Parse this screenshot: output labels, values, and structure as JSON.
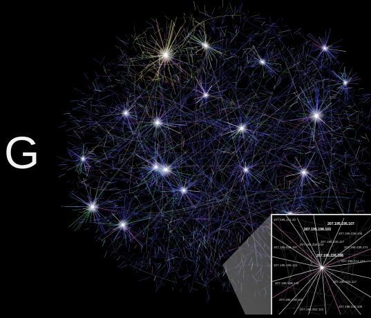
{
  "letter": "G",
  "zoom_labels": [
    {
      "text": "207.195.151.20",
      "bold": false
    },
    {
      "text": "207.195.198.103",
      "bold": true
    },
    {
      "text": "207.195.195.107",
      "bold": true
    },
    {
      "text": "207.195.236.145",
      "bold": false
    },
    {
      "text": "207.195.238.157",
      "bold": false
    },
    {
      "text": "207.195.236.103",
      "bold": false
    },
    {
      "text": "207.195.239.117",
      "bold": false
    },
    {
      "text": "207.195.238.174",
      "bold": false
    },
    {
      "text": "207.195.226.188",
      "bold": true
    },
    {
      "text": "207.195.214.121",
      "bold": false
    },
    {
      "text": "207.195.198.121",
      "bold": false
    },
    {
      "text": "207.195.196.143",
      "bold": false
    },
    {
      "text": "207.195.244.117",
      "bold": false
    },
    {
      "text": "207.195.238.155",
      "bold": false
    },
    {
      "text": "207.195.252.113",
      "bold": false
    },
    {
      "text": "207.195.236.105",
      "bold": false
    }
  ],
  "colors": {
    "background": "#000000",
    "edge_blue": "#5a5cff",
    "edge_yellow": "#e8e07a",
    "edge_white": "#ffffff",
    "edge_pink": "#ff6ec7",
    "edge_green": "#4fd27a",
    "edge_cyan": "#6fe0e0"
  }
}
